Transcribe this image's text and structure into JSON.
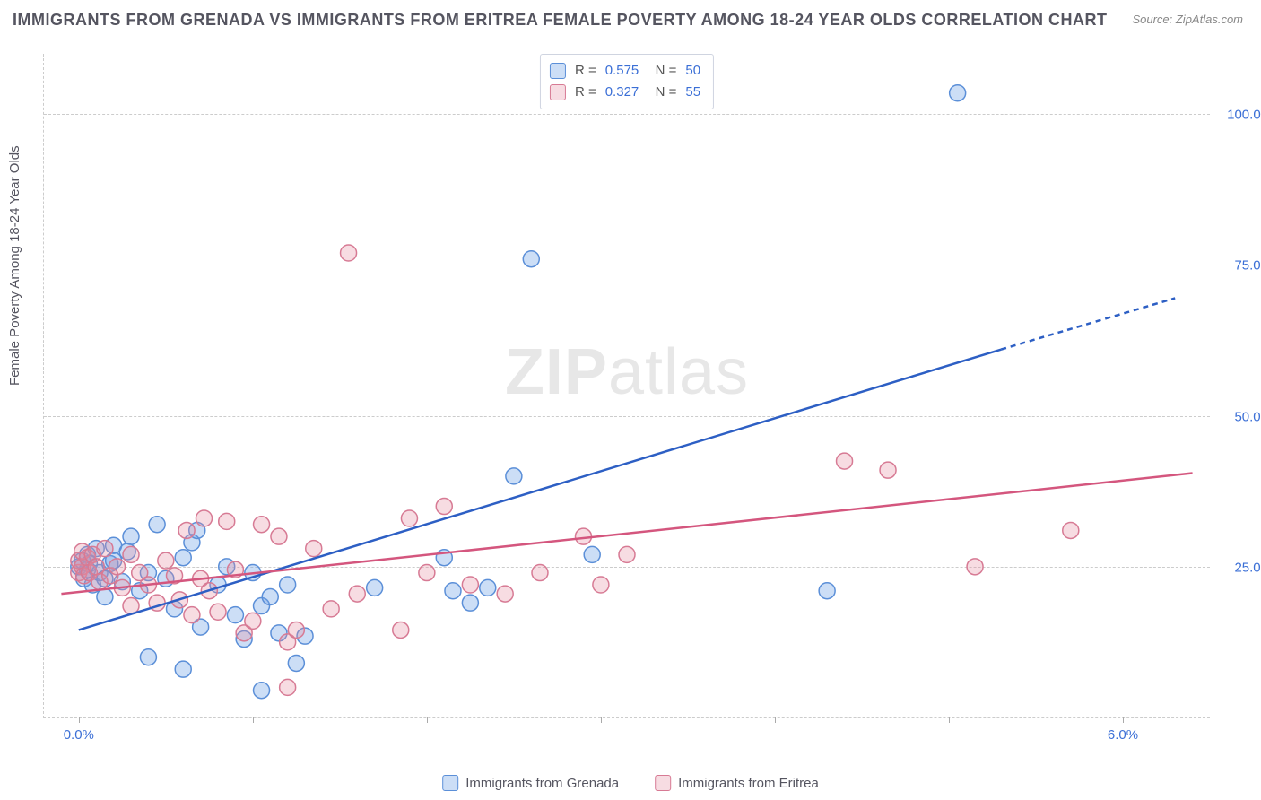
{
  "title": "IMMIGRANTS FROM GRENADA VS IMMIGRANTS FROM ERITREA FEMALE POVERTY AMONG 18-24 YEAR OLDS CORRELATION CHART",
  "source": "Source: ZipAtlas.com",
  "ylabel": "Female Poverty Among 18-24 Year Olds",
  "watermark_bold": "ZIP",
  "watermark_rest": "atlas",
  "chart": {
    "type": "scatter",
    "background_color": "#ffffff",
    "grid_color": "#cccccc",
    "grid_dash": "4,4",
    "xlim": [
      -0.2,
      6.5
    ],
    "ylim": [
      0,
      110
    ],
    "xtick_positions": [
      0,
      1,
      2,
      3,
      4,
      5,
      6
    ],
    "xtick_labels": {
      "0": "0.0%",
      "6": "6.0%"
    },
    "ytick_positions": [
      25,
      50,
      75,
      100
    ],
    "ytick_labels": {
      "25": "25.0%",
      "50": "50.0%",
      "75": "75.0%",
      "100": "100.0%"
    },
    "marker_radius": 9,
    "marker_stroke_width": 1.5,
    "line_width": 2.5,
    "tick_label_color": "#3b6fd6",
    "tick_label_fontsize": 15,
    "axis_label_color": "#555560",
    "title_color": "#555560",
    "title_fontsize": 18,
    "series": [
      {
        "name": "Immigrants from Grenada",
        "fill": "rgba(110,160,230,0.35)",
        "stroke": "#5b8fd8",
        "line_color": "#2d5fc4",
        "R": "0.575",
        "N": "50",
        "trend": {
          "x1": 0.0,
          "y1": 14.5,
          "x2": 5.3,
          "y2": 61.0,
          "dash_after_x": 5.3,
          "x3": 6.3,
          "y3": 69.5
        },
        "points": [
          [
            0.0,
            25.0
          ],
          [
            0.02,
            26.0
          ],
          [
            0.03,
            23.0
          ],
          [
            0.05,
            24.5
          ],
          [
            0.05,
            27.0
          ],
          [
            0.06,
            25.5
          ],
          [
            0.1,
            28.0
          ],
          [
            0.08,
            22.0
          ],
          [
            0.12,
            24.0
          ],
          [
            0.15,
            23.0
          ],
          [
            0.18,
            25.5
          ],
          [
            0.2,
            28.5
          ],
          [
            0.25,
            22.5
          ],
          [
            0.28,
            27.5
          ],
          [
            0.3,
            30.0
          ],
          [
            0.35,
            21.0
          ],
          [
            0.4,
            24.0
          ],
          [
            0.45,
            32.0
          ],
          [
            0.5,
            23.0
          ],
          [
            0.55,
            18.0
          ],
          [
            0.6,
            26.5
          ],
          [
            0.65,
            29.0
          ],
          [
            0.68,
            31.0
          ],
          [
            0.7,
            15.0
          ],
          [
            0.8,
            22.0
          ],
          [
            0.85,
            25.0
          ],
          [
            0.9,
            17.0
          ],
          [
            0.95,
            13.0
          ],
          [
            1.0,
            24.0
          ],
          [
            1.05,
            18.5
          ],
          [
            1.1,
            20.0
          ],
          [
            1.15,
            14.0
          ],
          [
            1.2,
            22.0
          ],
          [
            0.6,
            8.0
          ],
          [
            1.05,
            4.5
          ],
          [
            1.25,
            9.0
          ],
          [
            1.3,
            13.5
          ],
          [
            0.4,
            10.0
          ],
          [
            1.7,
            21.5
          ],
          [
            2.1,
            26.5
          ],
          [
            2.15,
            21.0
          ],
          [
            2.35,
            21.5
          ],
          [
            2.5,
            40.0
          ],
          [
            2.6,
            76.0
          ],
          [
            2.95,
            27.0
          ],
          [
            2.25,
            19.0
          ],
          [
            4.3,
            21.0
          ],
          [
            5.05,
            103.5
          ],
          [
            0.15,
            20.0
          ],
          [
            0.2,
            26.0
          ]
        ]
      },
      {
        "name": "Immigrants from Eritrea",
        "fill": "rgba(230,140,160,0.30)",
        "stroke": "#d77a94",
        "line_color": "#d4567e",
        "R": "0.327",
        "N": "55",
        "trend": {
          "x1": -0.1,
          "y1": 20.5,
          "x2": 6.4,
          "y2": 40.5
        },
        "points": [
          [
            0.0,
            24.0
          ],
          [
            0.0,
            26.0
          ],
          [
            0.02,
            25.0
          ],
          [
            0.02,
            27.5
          ],
          [
            0.03,
            23.5
          ],
          [
            0.05,
            26.5
          ],
          [
            0.06,
            24.0
          ],
          [
            0.08,
            27.0
          ],
          [
            0.1,
            25.0
          ],
          [
            0.12,
            22.5
          ],
          [
            0.15,
            28.0
          ],
          [
            0.18,
            23.5
          ],
          [
            0.22,
            25.0
          ],
          [
            0.25,
            21.5
          ],
          [
            0.3,
            27.0
          ],
          [
            0.35,
            24.0
          ],
          [
            0.4,
            22.0
          ],
          [
            0.45,
            19.0
          ],
          [
            0.5,
            26.0
          ],
          [
            0.55,
            23.5
          ],
          [
            0.58,
            19.5
          ],
          [
            0.62,
            31.0
          ],
          [
            0.65,
            17.0
          ],
          [
            0.7,
            23.0
          ],
          [
            0.72,
            33.0
          ],
          [
            0.75,
            21.0
          ],
          [
            0.8,
            17.5
          ],
          [
            0.85,
            32.5
          ],
          [
            0.9,
            24.5
          ],
          [
            0.95,
            14.0
          ],
          [
            1.0,
            16.0
          ],
          [
            1.05,
            32.0
          ],
          [
            1.15,
            30.0
          ],
          [
            1.2,
            12.5
          ],
          [
            1.25,
            14.5
          ],
          [
            1.35,
            28.0
          ],
          [
            1.45,
            18.0
          ],
          [
            1.2,
            5.0
          ],
          [
            1.55,
            77.0
          ],
          [
            1.6,
            20.5
          ],
          [
            1.85,
            14.5
          ],
          [
            1.9,
            33.0
          ],
          [
            2.0,
            24.0
          ],
          [
            2.1,
            35.0
          ],
          [
            2.25,
            22.0
          ],
          [
            2.45,
            20.5
          ],
          [
            2.65,
            24.0
          ],
          [
            2.9,
            30.0
          ],
          [
            3.0,
            22.0
          ],
          [
            3.15,
            27.0
          ],
          [
            4.4,
            42.5
          ],
          [
            4.65,
            41.0
          ],
          [
            5.7,
            31.0
          ],
          [
            5.15,
            25.0
          ],
          [
            0.3,
            18.5
          ]
        ]
      }
    ]
  },
  "bottom_legend": [
    {
      "label": "Immigrants from Grenada",
      "swatch": "blue"
    },
    {
      "label": "Immigrants from Eritrea",
      "swatch": "pink"
    }
  ]
}
